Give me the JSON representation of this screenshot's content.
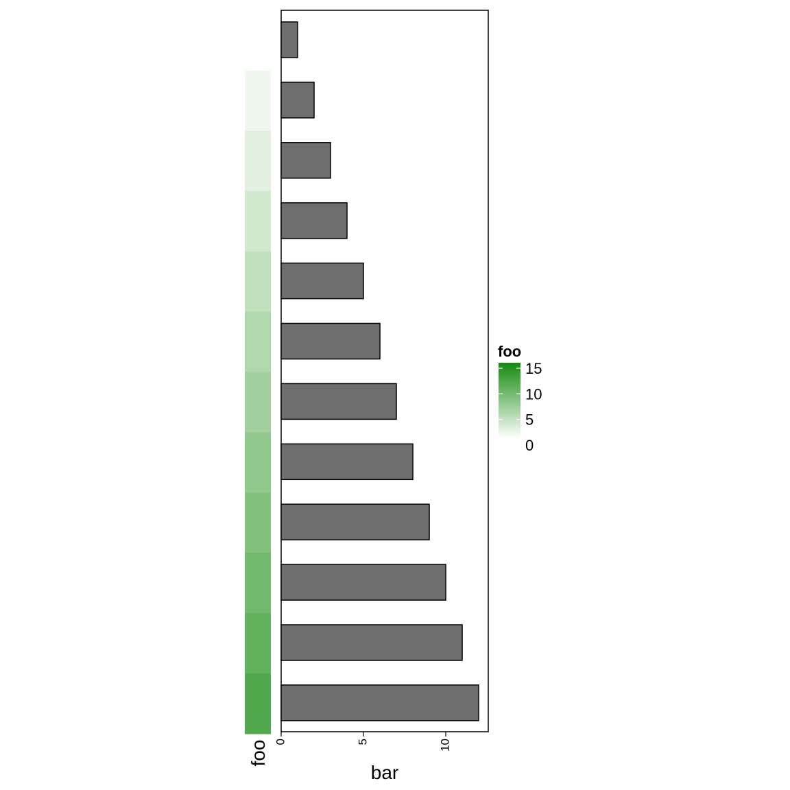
{
  "chart_data": {
    "type": "bar",
    "orientation": "horizontal",
    "bar_values": [
      1,
      2,
      3,
      4,
      5,
      6,
      7,
      8,
      9,
      10,
      11,
      12
    ],
    "annotation_values": [
      1,
      2,
      3,
      4,
      5,
      6,
      7,
      8,
      9,
      10,
      11
    ],
    "xlabel": "bar",
    "side_annotation_label": "foo",
    "x_ticks": [
      "0",
      "5",
      "10"
    ],
    "xlim": [
      0,
      12.5
    ],
    "grid": false,
    "bar_fill": "#6e6e6e",
    "bar_stroke": "#000000",
    "legend": {
      "title": "foo",
      "placement": "right",
      "labels": [
        "15",
        "10",
        "5",
        "0"
      ],
      "range": [
        0,
        15
      ],
      "color_low": "#ffffff",
      "color_high": "#138a0c"
    }
  }
}
